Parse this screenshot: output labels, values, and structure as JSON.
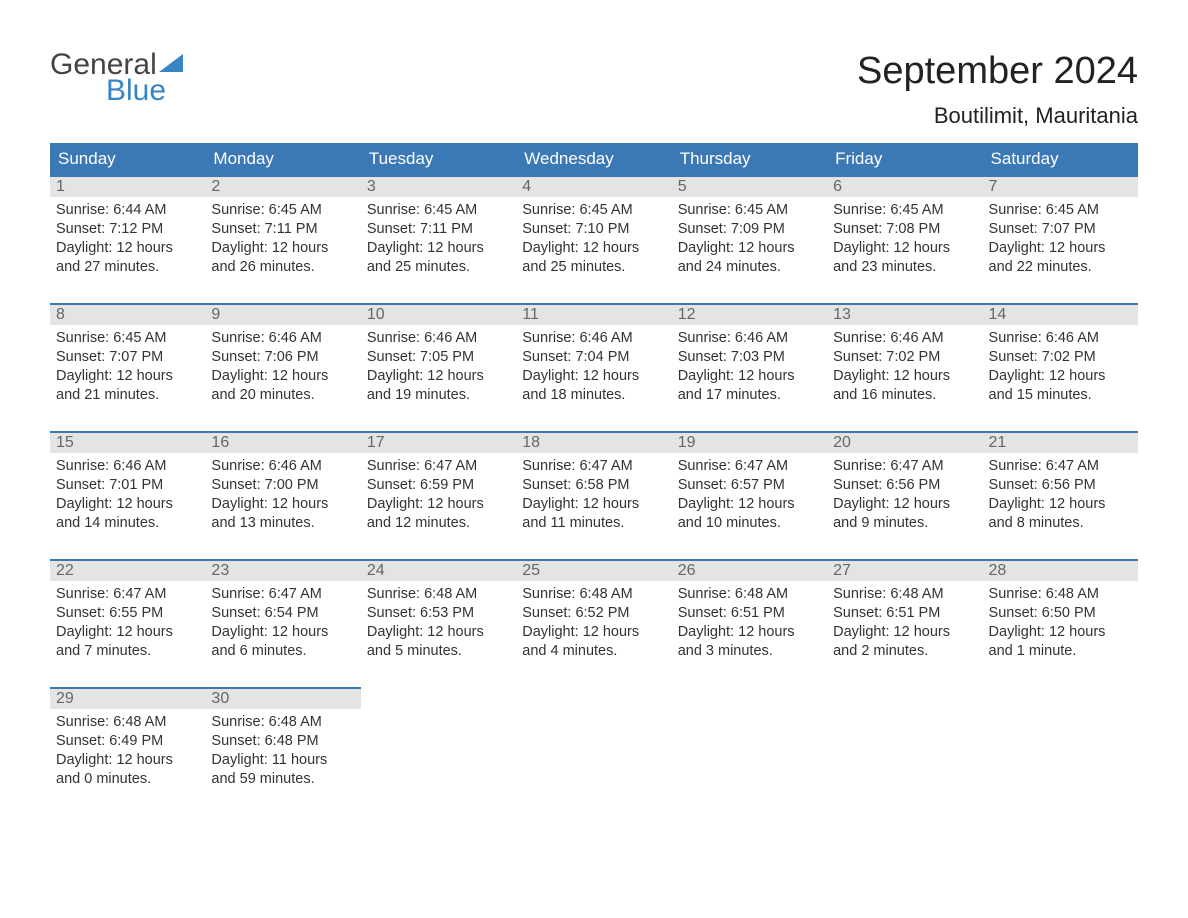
{
  "brand": {
    "part1": "General",
    "part2": "Blue"
  },
  "title": "September 2024",
  "location": "Boutilimit, Mauritania",
  "colors": {
    "header_bg": "#3b78b6",
    "header_text": "#ffffff",
    "daynum_bg": "#e4e4e4",
    "daynum_border": "#3b78b6",
    "daynum_text": "#666666",
    "body_text": "#333333",
    "page_bg": "#ffffff",
    "brand_blue": "#3885c6",
    "brand_gray": "#444444"
  },
  "typography": {
    "title_fontsize": 38,
    "location_fontsize": 22,
    "header_fontsize": 17,
    "daynum_fontsize": 16,
    "body_fontsize": 14.5
  },
  "layout": {
    "columns": 7,
    "rows": 5
  },
  "weekdays": [
    "Sunday",
    "Monday",
    "Tuesday",
    "Wednesday",
    "Thursday",
    "Friday",
    "Saturday"
  ],
  "labels": {
    "sunrise": "Sunrise:",
    "sunset": "Sunset:",
    "daylight": "Daylight:"
  },
  "days": [
    {
      "n": 1,
      "sunrise": "6:44 AM",
      "sunset": "7:12 PM",
      "daylight": "12 hours and 27 minutes."
    },
    {
      "n": 2,
      "sunrise": "6:45 AM",
      "sunset": "7:11 PM",
      "daylight": "12 hours and 26 minutes."
    },
    {
      "n": 3,
      "sunrise": "6:45 AM",
      "sunset": "7:11 PM",
      "daylight": "12 hours and 25 minutes."
    },
    {
      "n": 4,
      "sunrise": "6:45 AM",
      "sunset": "7:10 PM",
      "daylight": "12 hours and 25 minutes."
    },
    {
      "n": 5,
      "sunrise": "6:45 AM",
      "sunset": "7:09 PM",
      "daylight": "12 hours and 24 minutes."
    },
    {
      "n": 6,
      "sunrise": "6:45 AM",
      "sunset": "7:08 PM",
      "daylight": "12 hours and 23 minutes."
    },
    {
      "n": 7,
      "sunrise": "6:45 AM",
      "sunset": "7:07 PM",
      "daylight": "12 hours and 22 minutes."
    },
    {
      "n": 8,
      "sunrise": "6:45 AM",
      "sunset": "7:07 PM",
      "daylight": "12 hours and 21 minutes."
    },
    {
      "n": 9,
      "sunrise": "6:46 AM",
      "sunset": "7:06 PM",
      "daylight": "12 hours and 20 minutes."
    },
    {
      "n": 10,
      "sunrise": "6:46 AM",
      "sunset": "7:05 PM",
      "daylight": "12 hours and 19 minutes."
    },
    {
      "n": 11,
      "sunrise": "6:46 AM",
      "sunset": "7:04 PM",
      "daylight": "12 hours and 18 minutes."
    },
    {
      "n": 12,
      "sunrise": "6:46 AM",
      "sunset": "7:03 PM",
      "daylight": "12 hours and 17 minutes."
    },
    {
      "n": 13,
      "sunrise": "6:46 AM",
      "sunset": "7:02 PM",
      "daylight": "12 hours and 16 minutes."
    },
    {
      "n": 14,
      "sunrise": "6:46 AM",
      "sunset": "7:02 PM",
      "daylight": "12 hours and 15 minutes."
    },
    {
      "n": 15,
      "sunrise": "6:46 AM",
      "sunset": "7:01 PM",
      "daylight": "12 hours and 14 minutes."
    },
    {
      "n": 16,
      "sunrise": "6:46 AM",
      "sunset": "7:00 PM",
      "daylight": "12 hours and 13 minutes."
    },
    {
      "n": 17,
      "sunrise": "6:47 AM",
      "sunset": "6:59 PM",
      "daylight": "12 hours and 12 minutes."
    },
    {
      "n": 18,
      "sunrise": "6:47 AM",
      "sunset": "6:58 PM",
      "daylight": "12 hours and 11 minutes."
    },
    {
      "n": 19,
      "sunrise": "6:47 AM",
      "sunset": "6:57 PM",
      "daylight": "12 hours and 10 minutes."
    },
    {
      "n": 20,
      "sunrise": "6:47 AM",
      "sunset": "6:56 PM",
      "daylight": "12 hours and 9 minutes."
    },
    {
      "n": 21,
      "sunrise": "6:47 AM",
      "sunset": "6:56 PM",
      "daylight": "12 hours and 8 minutes."
    },
    {
      "n": 22,
      "sunrise": "6:47 AM",
      "sunset": "6:55 PM",
      "daylight": "12 hours and 7 minutes."
    },
    {
      "n": 23,
      "sunrise": "6:47 AM",
      "sunset": "6:54 PM",
      "daylight": "12 hours and 6 minutes."
    },
    {
      "n": 24,
      "sunrise": "6:48 AM",
      "sunset": "6:53 PM",
      "daylight": "12 hours and 5 minutes."
    },
    {
      "n": 25,
      "sunrise": "6:48 AM",
      "sunset": "6:52 PM",
      "daylight": "12 hours and 4 minutes."
    },
    {
      "n": 26,
      "sunrise": "6:48 AM",
      "sunset": "6:51 PM",
      "daylight": "12 hours and 3 minutes."
    },
    {
      "n": 27,
      "sunrise": "6:48 AM",
      "sunset": "6:51 PM",
      "daylight": "12 hours and 2 minutes."
    },
    {
      "n": 28,
      "sunrise": "6:48 AM",
      "sunset": "6:50 PM",
      "daylight": "12 hours and 1 minute."
    },
    {
      "n": 29,
      "sunrise": "6:48 AM",
      "sunset": "6:49 PM",
      "daylight": "12 hours and 0 minutes."
    },
    {
      "n": 30,
      "sunrise": "6:48 AM",
      "sunset": "6:48 PM",
      "daylight": "11 hours and 59 minutes."
    }
  ],
  "start_weekday_index": 0
}
